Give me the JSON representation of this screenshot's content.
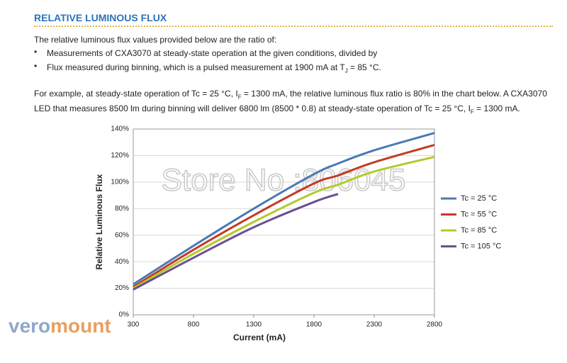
{
  "header": {
    "title": "RELATIVE LUMINOUS FLUX"
  },
  "intro": "The relative luminous flux values provided below are the ratio of:",
  "bullets": [
    [
      "Measurements of CXA3070 at steady-state operation at the given conditions, divided by"
    ],
    [
      "Flux measured during binning, which is a pulsed measurement at 1900 mA at T",
      {
        "sub": "J"
      },
      " = 85 °C."
    ]
  ],
  "example": [
    [
      "For example, at steady-state operation of Tc = 25 °C, I",
      {
        "sub": "F"
      },
      " = 1300 mA, the relative luminous flux ratio is 80% in the chart below. A CXA3070"
    ],
    [
      "LED that measures 8500 lm during binning will deliver 6800 lm (8500 * 0.8) at steady-state operation of Tc = 25 °C, I",
      {
        "sub": "F"
      },
      " = 1300 mA."
    ]
  ],
  "watermarks": {
    "store": "Store No :806045",
    "brand": [
      "vero",
      "mount"
    ]
  },
  "chart_data": {
    "type": "line",
    "x_label": "Current (mA)",
    "y_label": "Relative Luminous Flux",
    "x": [
      300,
      800,
      1300,
      1800,
      2000,
      2300,
      2800
    ],
    "series": [
      {
        "name": "Tc = 25 °C",
        "color": "#4a7ab5",
        "values": [
          23,
          52,
          80,
          106,
          114,
          124,
          137
        ]
      },
      {
        "name": "Tc = 55 °C",
        "color": "#c33b23",
        "values": [
          21,
          49,
          75,
          99,
          105,
          115,
          128
        ]
      },
      {
        "name": "Tc = 85 °C",
        "color": "#b4c92e",
        "values": [
          20,
          46,
          70,
          92,
          98,
          108,
          119
        ]
      },
      {
        "name": "Tc = 105 °C",
        "color": "#6b4f94",
        "values": [
          19,
          43,
          66,
          85,
          91,
          null,
          null
        ]
      }
    ],
    "xlim": [
      300,
      2800
    ],
    "xticks": [
      300,
      800,
      1300,
      1800,
      2300,
      2800
    ],
    "ylim": [
      0,
      140
    ],
    "yticks": [
      {
        "value": 0,
        "label": "0%"
      },
      {
        "value": 20,
        "label": "20%"
      },
      {
        "value": 40,
        "label": "40%"
      },
      {
        "value": 60,
        "label": "60%"
      },
      {
        "value": 80,
        "label": "80%"
      },
      {
        "value": 100,
        "label": "100%"
      },
      {
        "value": 120,
        "label": "120%"
      },
      {
        "value": 140,
        "label": "140%"
      }
    ],
    "grid": true,
    "legend": "right"
  }
}
